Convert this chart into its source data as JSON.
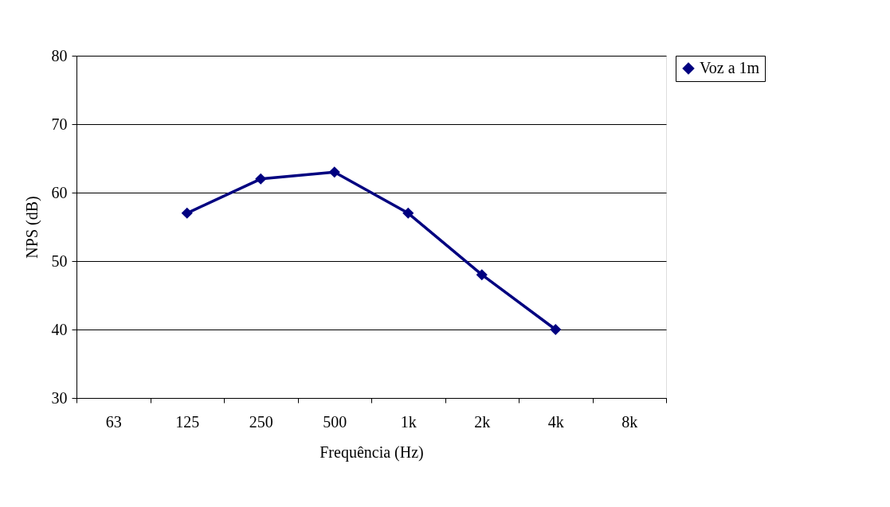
{
  "chart_data": {
    "type": "line",
    "xlabel": "Frequência (Hz)",
    "ylabel": "NPS (dB)",
    "categories": [
      "63",
      "125",
      "250",
      "500",
      "1k",
      "2k",
      "4k",
      "8k"
    ],
    "series": [
      {
        "name": "Voz a 1m",
        "color": "#000080",
        "values": [
          null,
          57,
          62,
          63,
          57,
          48,
          40,
          null
        ]
      }
    ],
    "ylim": [
      30,
      80
    ],
    "yticks": [
      30,
      40,
      50,
      60,
      70,
      80
    ],
    "grid": "y",
    "legend": "right",
    "marker": "diamond",
    "line_style": "solid"
  }
}
